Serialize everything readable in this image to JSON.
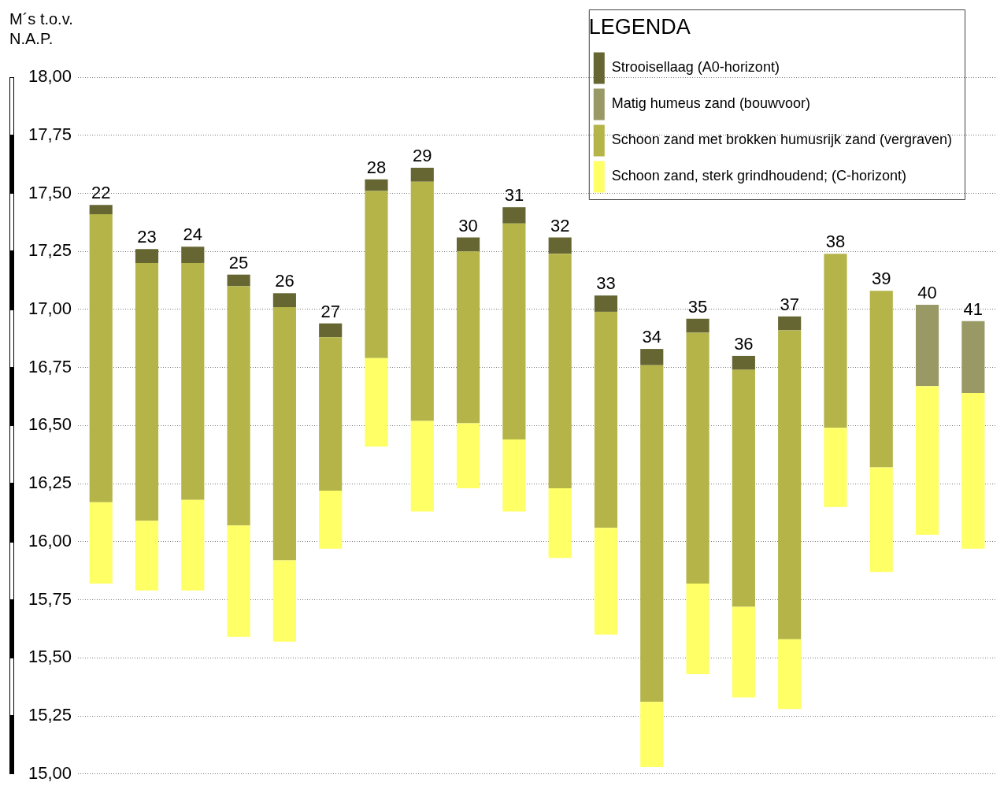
{
  "chart_data": {
    "type": "bar",
    "ylabel": "M´s  t.o.v.\nN.A.P.",
    "legend_title": "LEGENDA",
    "legend": "top right",
    "grid": "y",
    "tick_labels": "y",
    "categories": [
      "22",
      "23",
      "24",
      "25",
      "26",
      "27",
      "28",
      "29",
      "30",
      "31",
      "32",
      "33",
      "34",
      "35",
      "36",
      "37",
      "38",
      "39",
      "40",
      "41"
    ],
    "series": [
      {
        "name": "Schoon zand, sterk grindhoudend; (C-horizont)",
        "color": "#ffff66",
        "base": [
          15.82,
          15.79,
          15.79,
          15.59,
          15.57,
          15.97,
          16.41,
          16.13,
          16.23,
          16.13,
          15.93,
          15.6,
          15.03,
          15.43,
          15.33,
          15.28,
          16.15,
          15.87,
          16.03,
          15.97
        ],
        "values": [
          0.35,
          0.3,
          0.39,
          0.48,
          0.35,
          0.25,
          0.38,
          0.39,
          0.28,
          0.31,
          0.3,
          0.46,
          0.28,
          0.39,
          0.39,
          0.3,
          0.34,
          0.45,
          0.64,
          0.67
        ]
      },
      {
        "name": "Schoon zand met brokken humusrijk zand (vergraven)",
        "color": "#b4b448",
        "base": [
          16.17,
          16.09,
          16.18,
          16.07,
          15.92,
          16.22,
          16.79,
          16.52,
          16.51,
          16.44,
          16.23,
          16.06,
          15.31,
          15.82,
          15.72,
          15.58,
          16.49,
          16.32,
          null,
          null
        ],
        "values": [
          1.24,
          1.11,
          1.02,
          1.03,
          1.09,
          0.66,
          0.72,
          1.03,
          0.74,
          0.93,
          1.01,
          0.93,
          1.45,
          1.08,
          1.02,
          1.33,
          0.75,
          0.76,
          null,
          null
        ]
      },
      {
        "name": "Matig humeus zand (bouwvoor)",
        "color": "#999966",
        "base": [
          null,
          null,
          null,
          null,
          null,
          null,
          null,
          null,
          null,
          null,
          null,
          null,
          null,
          null,
          null,
          null,
          null,
          null,
          16.67,
          16.64
        ],
        "values": [
          null,
          null,
          null,
          null,
          null,
          null,
          null,
          null,
          null,
          null,
          null,
          null,
          null,
          null,
          null,
          null,
          null,
          null,
          0.35,
          0.31
        ]
      },
      {
        "name": "Strooisellaag (A0-horizont)",
        "color": "#666633",
        "base": [
          17.41,
          17.2,
          17.2,
          17.1,
          17.01,
          16.88,
          17.51,
          17.55,
          17.25,
          17.37,
          17.24,
          16.99,
          16.76,
          16.9,
          16.74,
          16.91,
          null,
          null,
          null,
          null
        ],
        "values": [
          0.04,
          0.06,
          0.07,
          0.05,
          0.06,
          0.06,
          0.05,
          0.06,
          0.06,
          0.07,
          0.07,
          0.07,
          0.07,
          0.06,
          0.06,
          0.06,
          null,
          null,
          null,
          null
        ]
      }
    ],
    "ylim": [
      15,
      18
    ],
    "yticks": [
      {
        "value": 15,
        "label": "15,00"
      },
      {
        "value": 15.25,
        "label": "15,25"
      },
      {
        "value": 15.5,
        "label": "15,50"
      },
      {
        "value": 15.75,
        "label": "15,75"
      },
      {
        "value": 16,
        "label": "16,00"
      },
      {
        "value": 16.25,
        "label": "16,25"
      },
      {
        "value": 16.5,
        "label": "16,50"
      },
      {
        "value": 16.75,
        "label": "16,75"
      },
      {
        "value": 17,
        "label": "17,00"
      },
      {
        "value": 17.25,
        "label": "17,25"
      },
      {
        "value": 17.5,
        "label": "17,50"
      },
      {
        "value": 17.75,
        "label": "17,75"
      },
      {
        "value": 18,
        "label": "18,00"
      }
    ]
  }
}
